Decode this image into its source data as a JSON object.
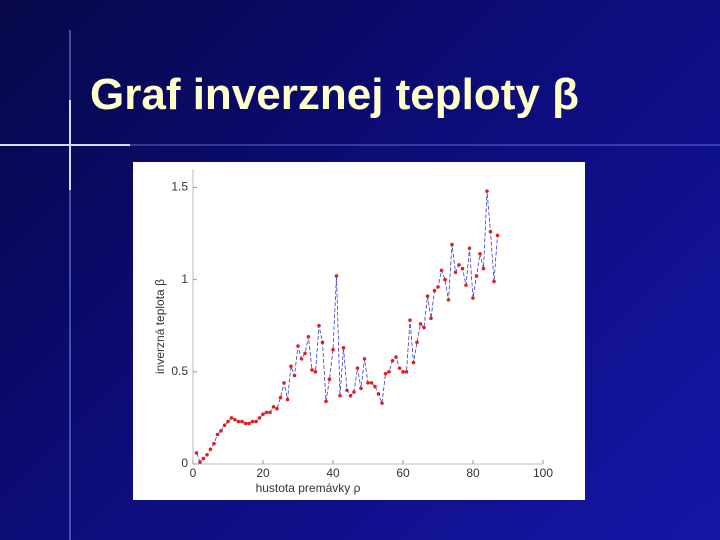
{
  "chart_data": {
    "type": "line",
    "title": "Graf inverznej teploty β",
    "x_label": "hustota premávky ρ",
    "y_label": "inverzná teplota β",
    "x": [
      1,
      2,
      3,
      4,
      5,
      6,
      7,
      8,
      9,
      10,
      11,
      12,
      13,
      14,
      15,
      16,
      17,
      18,
      19,
      20,
      21,
      22,
      23,
      24,
      25,
      26,
      27,
      28,
      29,
      30,
      31,
      32,
      33,
      34,
      35,
      36,
      37,
      38,
      39,
      40,
      41,
      42,
      43,
      44,
      45,
      46,
      47,
      48,
      49,
      50,
      51,
      52,
      53,
      54,
      55,
      56,
      57,
      58,
      59,
      60,
      61,
      62,
      63,
      64,
      65,
      66,
      67,
      68,
      69,
      70,
      71,
      72,
      73,
      74,
      75,
      76,
      77,
      78,
      79,
      80,
      81,
      82,
      83,
      84,
      85,
      86,
      87
    ],
    "series": [
      {
        "line_color": "#3a3ad0",
        "marker_color": "#e02020",
        "values": [
          0.06,
          0.01,
          0.03,
          0.05,
          0.08,
          0.11,
          0.16,
          0.18,
          0.21,
          0.23,
          0.25,
          0.24,
          0.23,
          0.23,
          0.22,
          0.22,
          0.23,
          0.23,
          0.25,
          0.27,
          0.28,
          0.28,
          0.31,
          0.3,
          0.36,
          0.44,
          0.35,
          0.53,
          0.48,
          0.64,
          0.57,
          0.6,
          0.69,
          0.51,
          0.5,
          0.75,
          0.66,
          0.34,
          0.46,
          0.62,
          1.02,
          0.37,
          0.63,
          0.4,
          0.37,
          0.39,
          0.52,
          0.41,
          0.57,
          0.44,
          0.44,
          0.42,
          0.38,
          0.33,
          0.49,
          0.5,
          0.56,
          0.58,
          0.52,
          0.5,
          0.5,
          0.78,
          0.55,
          0.66,
          0.76,
          0.74,
          0.91,
          0.79,
          0.94,
          0.96,
          1.05,
          1.0,
          0.89,
          1.19,
          1.04,
          1.08,
          1.06,
          0.97,
          1.17,
          0.9,
          1.02,
          1.14,
          1.06,
          1.48,
          1.26,
          0.99,
          1.24
        ]
      }
    ],
    "xlim": [
      0,
      100
    ],
    "xticks": [
      0,
      20,
      40,
      60,
      80,
      100
    ],
    "ylim": [
      0,
      1.6
    ],
    "yticks": [
      0,
      0.5,
      1,
      1.5
    ]
  }
}
